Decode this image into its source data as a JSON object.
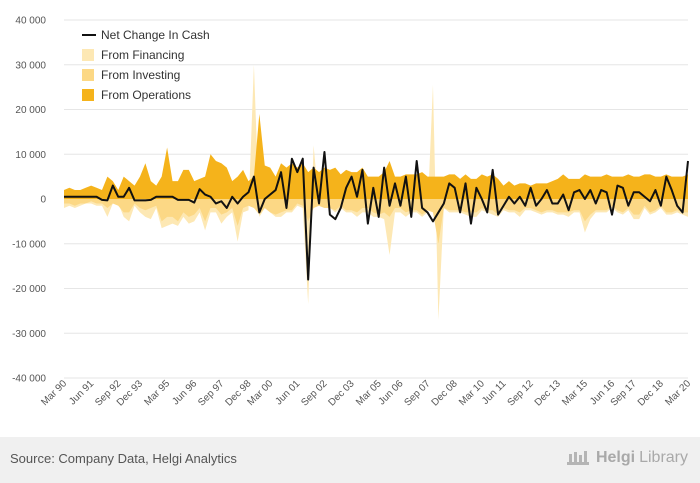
{
  "footer": {
    "source": "Source: Company Data, Helgi Analytics",
    "brand_part1": "Helgi",
    "brand_part2": "Library"
  },
  "colors": {
    "financing": "#fde8b4",
    "investing": "#fcd885",
    "operations": "#f5b31b",
    "net": "#111111",
    "grid": "#e6e6e6"
  },
  "chart_data": {
    "type": "area",
    "title": "",
    "xlabel": "",
    "ylabel": "",
    "ylim": [
      -40000,
      40000
    ],
    "yticks": [
      -40000,
      -30000,
      -20000,
      -10000,
      0,
      10000,
      20000,
      30000,
      40000
    ],
    "ytick_labels": [
      "-40 000",
      "-30 000",
      "-20 000",
      "-10 000",
      "0",
      "10 000",
      "20 000",
      "30 000",
      "40 000"
    ],
    "xtick_labels": [
      "Mar 90",
      "Jun 91",
      "Sep 92",
      "Dec 93",
      "Mar 95",
      "Jun 96",
      "Sep 97",
      "Dec 98",
      "Mar 00",
      "Jun 01",
      "Sep 02",
      "Dec 03",
      "Mar 05",
      "Jun 06",
      "Sep 07",
      "Dec 08",
      "Mar 10",
      "Jun 11",
      "Sep 12",
      "Dec 13",
      "Mar 15",
      "Jun 16",
      "Sep 17",
      "Dec 18",
      "Mar 20"
    ],
    "grid": true,
    "legend_position": "top-left",
    "x_start": "Mar 90",
    "x_frequency": "quarterly",
    "series": [
      {
        "name": "Net Change In Cash",
        "kind": "line",
        "color": "#111111",
        "values": [
          500,
          500,
          500,
          500,
          500,
          500,
          500,
          -200,
          -300,
          3000,
          500,
          500,
          2500,
          -300,
          -300,
          -300,
          -200,
          500,
          500,
          500,
          500,
          -200,
          -200,
          -200,
          -800,
          2200,
          1000,
          500,
          -1000,
          -500,
          -2000,
          500,
          -1000,
          500,
          1500,
          5000,
          -3000,
          0,
          1000,
          2000,
          6000,
          -2000,
          9000,
          6000,
          9000,
          -18000,
          7000,
          -1000,
          10500,
          -3500,
          -4500,
          -2000,
          2500,
          5000,
          500,
          6500,
          -5500,
          2500,
          -4000,
          7000,
          -1500,
          3500,
          -1500,
          5000,
          -4000,
          8500,
          -2000,
          -3000,
          -5000,
          -3000,
          -1000,
          3500,
          2500,
          -3000,
          3500,
          -5500,
          2500,
          0,
          -3000,
          6500,
          -3500,
          -1500,
          500,
          -1000,
          500,
          -1500,
          2500,
          -1500,
          0,
          2000,
          -1000,
          -1000,
          1000,
          -2500,
          1500,
          2000,
          0,
          2000,
          -1000,
          2000,
          1500,
          -3500,
          3000,
          2500,
          -1500,
          1500,
          1500,
          500,
          -500,
          2000,
          -1500,
          5000,
          2000,
          -1500,
          -3000,
          8500
        ]
      },
      {
        "name": "From Financing",
        "kind": "area",
        "color": "#fde8b4",
        "values": [
          -2000,
          -1500,
          -2000,
          -1500,
          -1000,
          -1000,
          -1500,
          -1500,
          -4000,
          -1000,
          -1000,
          -4000,
          -5000,
          -1500,
          -3000,
          -4000,
          -4500,
          -2000,
          -6500,
          -6000,
          -5500,
          -6000,
          -4000,
          -5500,
          -5000,
          -3000,
          -7000,
          -3000,
          -3000,
          -5500,
          -4000,
          -3000,
          -9500,
          -3000,
          -2500,
          30000,
          -4000,
          -2000,
          -3000,
          -4000,
          -4000,
          -3000,
          -3000,
          -1500,
          -2000,
          -23500,
          12000,
          -1500,
          -2000,
          -2000,
          -3000,
          -2000,
          -3000,
          -3000,
          -4000,
          -3000,
          -3000,
          -4000,
          -4000,
          -4500,
          -12500,
          -3000,
          -3000,
          -4000,
          -3000,
          -3000,
          -4000,
          -3000,
          25500,
          -27000,
          -2000,
          -3000,
          -3000,
          -3000,
          -3500,
          -4000,
          -4000,
          -2500,
          -3000,
          -3500,
          -4000,
          -2500,
          -3000,
          -3000,
          -4000,
          -2500,
          -2500,
          -3000,
          -3500,
          -3000,
          -3000,
          -3500,
          -3500,
          -4000,
          -3000,
          -3000,
          -7500,
          -4500,
          -3000,
          -3000,
          -3000,
          -2000,
          -3000,
          -3500,
          -2500,
          -4500,
          -4500,
          -2000,
          -3500,
          -3000,
          -2000,
          -3500,
          -3500,
          -3000,
          -3500,
          -4000
        ]
      },
      {
        "name": "From Investing",
        "kind": "area",
        "color": "#fcd885",
        "values": [
          -1000,
          -1000,
          -1500,
          -1000,
          -1000,
          -500,
          -1000,
          -1000,
          -2000,
          -1000,
          -1500,
          -3000,
          -3000,
          -1000,
          -2000,
          -2500,
          -2000,
          -1500,
          -5000,
          -4000,
          -4000,
          -5000,
          -3000,
          -4000,
          -3500,
          -2000,
          -5000,
          -2000,
          -2000,
          -3500,
          -3000,
          -2000,
          -6000,
          -2000,
          -1500,
          -2000,
          -3500,
          -2000,
          -3000,
          -3500,
          -3000,
          -2500,
          -2500,
          -1000,
          -1500,
          -5000,
          -2000,
          -1500,
          -2000,
          -2000,
          -2500,
          -1500,
          -2500,
          -2500,
          -3000,
          -2000,
          -2000,
          -3000,
          -3500,
          -3000,
          -4000,
          -2000,
          -2000,
          -3000,
          -2500,
          -2500,
          -3500,
          -2500,
          -3000,
          -10000,
          -2000,
          -2500,
          -2500,
          -2500,
          -3000,
          -3000,
          -3000,
          -2000,
          -2500,
          -2500,
          -3500,
          -2000,
          -2500,
          -2500,
          -3000,
          -2000,
          -2000,
          -2500,
          -3000,
          -2500,
          -2500,
          -3000,
          -3000,
          -3000,
          -2500,
          -2500,
          -5000,
          -3500,
          -2500,
          -2500,
          -2500,
          -1500,
          -2500,
          -3000,
          -2000,
          -3500,
          -3500,
          -1500,
          -3000,
          -2500,
          -1500,
          -3000,
          -3000,
          -2500,
          -3000,
          -3000
        ]
      },
      {
        "name": "From Operations",
        "kind": "area",
        "color": "#f5b31b",
        "values": [
          2000,
          2500,
          2000,
          2000,
          2500,
          3000,
          2500,
          2000,
          5000,
          4000,
          2000,
          5000,
          4000,
          3000,
          5000,
          8000,
          4000,
          3000,
          5000,
          11500,
          4000,
          4000,
          6500,
          6500,
          4000,
          4500,
          5000,
          10000,
          8500,
          8000,
          7000,
          4000,
          5000,
          6500,
          4000,
          5000,
          19000,
          7500,
          7000,
          5000,
          8000,
          7000,
          8000,
          7000,
          8000,
          6000,
          7000,
          6000,
          7000,
          6500,
          7000,
          5500,
          6500,
          6000,
          6000,
          7000,
          5000,
          5000,
          5000,
          6000,
          8500,
          5000,
          5000,
          5500,
          5500,
          5500,
          6000,
          5000,
          5000,
          5000,
          5000,
          5500,
          5500,
          4500,
          5500,
          4500,
          4500,
          5500,
          5000,
          5500,
          4500,
          3000,
          4000,
          3000,
          3500,
          3500,
          3000,
          3500,
          3500,
          3500,
          4000,
          4500,
          5500,
          4500,
          4500,
          4500,
          5500,
          5000,
          5000,
          5000,
          5500,
          5000,
          5000,
          5000,
          5500,
          5000,
          5000,
          5500,
          5500,
          5000,
          5000,
          5500,
          5000,
          5000,
          5000,
          5500
        ]
      }
    ]
  }
}
